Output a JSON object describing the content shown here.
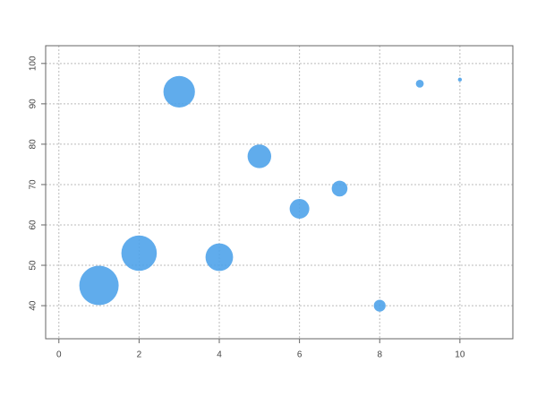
{
  "chart_data": {
    "type": "bubble",
    "x": [
      1,
      2,
      3,
      4,
      5,
      6,
      7,
      8,
      9,
      10
    ],
    "series": [
      {
        "color": "#4fa3ea",
        "values": [
          45,
          53,
          93,
          52,
          77,
          64,
          69,
          40,
          95,
          96
        ],
        "sizes": [
          10,
          9,
          8,
          7,
          6,
          5,
          4,
          3,
          2,
          1
        ]
      }
    ],
    "xlim": [
      -0.33,
      11.32
    ],
    "ylim": [
      31.8,
      104.4
    ],
    "xticks": [
      0,
      2,
      4,
      6,
      8,
      10
    ],
    "yticks": [
      40,
      50,
      60,
      70,
      80,
      90,
      100
    ],
    "grid": true
  }
}
